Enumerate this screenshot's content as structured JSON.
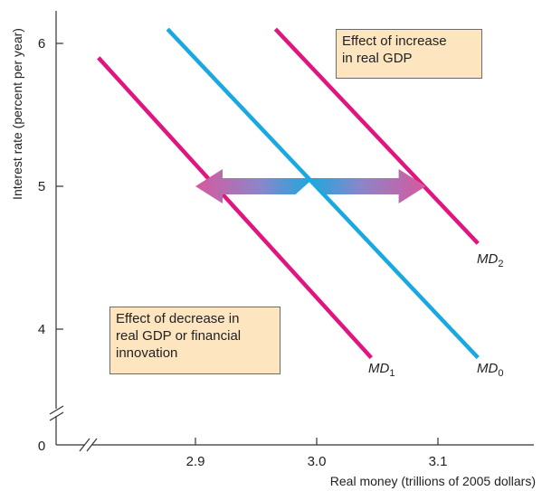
{
  "chart_data": {
    "type": "line",
    "title": "",
    "xlabel": "Real money (trillions of 2005 dollars)",
    "ylabel": "Interest rate (percent per year)",
    "xlim": [
      2.79,
      3.2
    ],
    "ylim": [
      3.3,
      6.3
    ],
    "x_ticks": [
      "2.9",
      "3.0",
      "3.1"
    ],
    "y_ticks": [
      "4",
      "5",
      "6"
    ],
    "origin_label": "0",
    "axis_breaks": true,
    "grid": false,
    "series": [
      {
        "name": "MD",
        "subscript": "1",
        "color": "#e0157f",
        "points": [
          [
            2.82,
            5.9
          ],
          [
            3.045,
            3.8
          ]
        ]
      },
      {
        "name": "MD",
        "subscript": "0",
        "color": "#19a9e0",
        "points": [
          [
            2.877,
            6.1
          ],
          [
            3.133,
            3.8
          ]
        ]
      },
      {
        "name": "MD",
        "subscript": "2",
        "color": "#e0157f",
        "points": [
          [
            2.966,
            6.1
          ],
          [
            3.133,
            4.6
          ]
        ]
      }
    ],
    "shift_arrows": [
      {
        "from": [
          2.99,
          5.0
        ],
        "to": [
          2.9,
          5.0
        ],
        "tail_color": "#19a9e0",
        "head_color": "#d8589c"
      },
      {
        "from": [
          3.0,
          5.0
        ],
        "to": [
          3.09,
          5.0
        ],
        "tail_color": "#19a9e0",
        "head_color": "#d8589c"
      }
    ],
    "annotations": {
      "increase": [
        "Effect of increase",
        "in real GDP"
      ],
      "decrease": [
        "Effect of decrease in",
        "real GDP or financial",
        "innovation"
      ]
    }
  }
}
